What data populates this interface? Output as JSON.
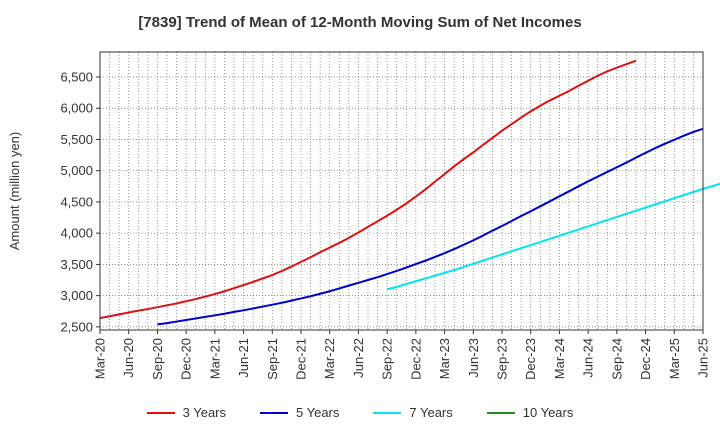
{
  "chart_data": {
    "type": "line",
    "title": "[7839]  Trend of Mean of 12-Month Moving Sum of Net Incomes",
    "xlabel": "",
    "ylabel": "Amount (million yen)",
    "ylim": [
      2450,
      6900
    ],
    "yticks": [
      2500,
      3000,
      3500,
      4000,
      4500,
      5000,
      5500,
      6000,
      6500
    ],
    "ytick_labels": [
      "2,500",
      "3,000",
      "3,500",
      "4,000",
      "4,500",
      "5,000",
      "5,500",
      "6,000",
      "6,500"
    ],
    "x_tick_labels": [
      "Mar-20",
      "Jun-20",
      "Sep-20",
      "Dec-20",
      "Mar-21",
      "Jun-21",
      "Sep-21",
      "Dec-21",
      "Mar-22",
      "Jun-22",
      "Sep-22",
      "Dec-22",
      "Mar-23",
      "Jun-23",
      "Sep-23",
      "Dec-23",
      "Mar-24",
      "Jun-24",
      "Sep-24",
      "Dec-24",
      "Mar-25",
      "Jun-25"
    ],
    "grid": true,
    "legend_position": "bottom",
    "series": [
      {
        "name": "3 Years",
        "color": "#dd1111",
        "start_month": "Mar-20",
        "values": [
          2640,
          2670,
          2700,
          2730,
          2760,
          2785,
          2815,
          2845,
          2875,
          2910,
          2945,
          2985,
          3025,
          3070,
          3120,
          3170,
          3220,
          3275,
          3330,
          3395,
          3465,
          3540,
          3615,
          3695,
          3770,
          3845,
          3925,
          4010,
          4100,
          4190,
          4280,
          4375,
          4475,
          4585,
          4700,
          4825,
          4945,
          5070,
          5185,
          5295,
          5410,
          5525,
          5640,
          5745,
          5850,
          5950,
          6040,
          6125,
          6200,
          6275,
          6360,
          6440,
          6520,
          6590,
          6650,
          6705,
          6760
        ]
      },
      {
        "name": "5 Years",
        "color": "#0000cc",
        "start_month": "Sep-20",
        "values": [
          2540,
          2560,
          2585,
          2610,
          2635,
          2660,
          2685,
          2710,
          2740,
          2765,
          2795,
          2825,
          2855,
          2885,
          2920,
          2955,
          2990,
          3030,
          3070,
          3115,
          3160,
          3205,
          3250,
          3295,
          3345,
          3395,
          3450,
          3505,
          3560,
          3620,
          3680,
          3745,
          3815,
          3885,
          3960,
          4040,
          4115,
          4195,
          4275,
          4350,
          4430,
          4510,
          4590,
          4670,
          4750,
          4830,
          4905,
          4980,
          5055,
          5130,
          5210,
          5285,
          5360,
          5430,
          5495,
          5560,
          5620,
          5670
        ]
      },
      {
        "name": "7 Years",
        "color": "#00e5ee",
        "start_month": "Sep-22",
        "values": [
          3100,
          3140,
          3185,
          3230,
          3275,
          3320,
          3365,
          3410,
          3460,
          3510,
          3560,
          3610,
          3660,
          3710,
          3760,
          3810,
          3860,
          3910,
          3960,
          4010,
          4060,
          4110,
          4160,
          4210,
          4260,
          4310,
          4360,
          4410,
          4460,
          4510,
          4560,
          4610,
          4660,
          4710,
          4755,
          4800,
          4845
        ]
      },
      {
        "name": "10 Years",
        "color": "#228b22",
        "start_month": "",
        "values": []
      }
    ]
  }
}
